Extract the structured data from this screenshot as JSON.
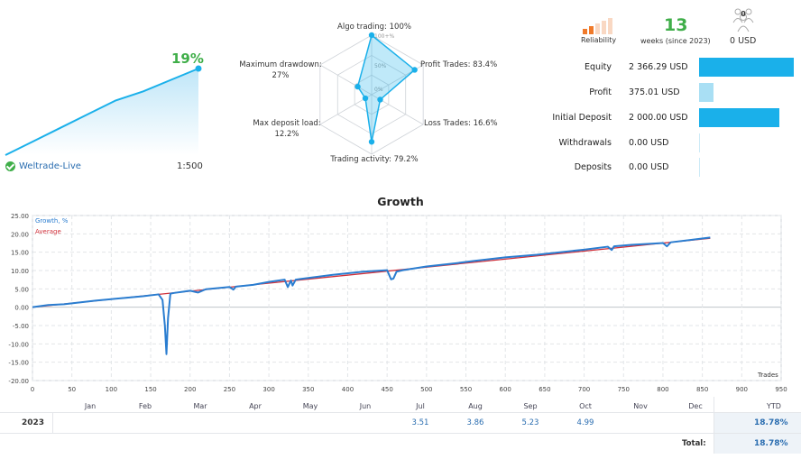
{
  "summary": {
    "growth_pct": "19%",
    "account_name": "Weltrade-Live",
    "leverage": "1:500",
    "mini_curve": [
      0,
      3,
      6,
      9,
      12,
      14,
      16.5,
      19
    ]
  },
  "radar": {
    "axes": [
      {
        "label": "Algo trading: 100%",
        "value": 100
      },
      {
        "label": "Profit Trades: 83.4%",
        "value": 83.4
      },
      {
        "label": "Loss Trades: 16.6%",
        "value": 16.6
      },
      {
        "label": "Trading activity: 79.2%",
        "value": 79.2
      },
      {
        "label": "Max deposit load:",
        "label2": "12.2%",
        "value": 12.2
      },
      {
        "label": "Maximum drawdown:",
        "label2": "27%",
        "value": 27
      }
    ],
    "rings": [
      "100+%",
      "50%",
      "0%"
    ]
  },
  "header": {
    "reliability_label": "Reliability",
    "weeks_number": "13",
    "weeks_label": "weeks (since 2023)",
    "subscribers_count": "0",
    "subscribers_value": "0 USD",
    "reliability_level": 2,
    "reliability_max": 5
  },
  "stats": [
    {
      "name": "Equity",
      "value": "2 366.29 USD",
      "fraction": 1.0
    },
    {
      "name": "Profit",
      "value": "375.01 USD",
      "fraction": 0.15
    },
    {
      "name": "Initial Deposit",
      "value": "2 000.00 USD",
      "fraction": 0.85
    },
    {
      "name": "Withdrawals",
      "value": "0.00 USD",
      "fraction": 0.0
    },
    {
      "name": "Deposits",
      "value": "0.00 USD",
      "fraction": 0.0
    }
  ],
  "chart_data": {
    "type": "line",
    "title": "Growth",
    "xlabel": "Trades",
    "xlim": [
      0,
      950
    ],
    "ylim": [
      -20,
      25
    ],
    "x_ticks": [
      0,
      50,
      100,
      150,
      200,
      250,
      300,
      350,
      400,
      450,
      500,
      550,
      600,
      650,
      700,
      750,
      800,
      850,
      900,
      950
    ],
    "y_ticks": [
      "25.00",
      "20.00",
      "15.00",
      "10.00",
      "5.00",
      "0.00",
      "-5.00",
      "-10.00",
      "-15.00",
      "-20.00"
    ],
    "y_tick_values": [
      25,
      20,
      15,
      10,
      5,
      0,
      -5,
      -10,
      -15,
      -20
    ],
    "grid": true,
    "legend_position": "top-left",
    "series": [
      {
        "name": "Growth, %",
        "color": "#2a7dd0",
        "x": [
          0,
          20,
          40,
          60,
          80,
          100,
          120,
          140,
          160,
          165,
          168,
          170,
          172,
          175,
          180,
          190,
          200,
          210,
          220,
          250,
          255,
          258,
          262,
          280,
          300,
          320,
          324,
          328,
          330,
          334,
          340,
          380,
          420,
          450,
          455,
          458,
          462,
          470,
          500,
          530,
          560,
          600,
          640,
          700,
          730,
          735,
          738,
          760,
          800,
          805,
          810,
          860
        ],
        "y": [
          0,
          0.6,
          0.8,
          1.3,
          1.8,
          2.2,
          2.6,
          3.0,
          3.5,
          2.0,
          -5.0,
          -12.8,
          -3.0,
          3.7,
          3.9,
          4.2,
          4.5,
          4.0,
          4.9,
          5.5,
          4.8,
          5.6,
          5.7,
          6.1,
          6.9,
          7.5,
          5.5,
          7.3,
          5.9,
          7.5,
          7.7,
          8.8,
          9.7,
          10.1,
          7.6,
          7.8,
          9.7,
          10.1,
          11.1,
          11.8,
          12.6,
          13.6,
          14.3,
          15.7,
          16.5,
          15.6,
          16.6,
          17.0,
          17.5,
          16.6,
          17.7,
          19.0
        ]
      },
      {
        "name": "Average",
        "color": "#d0303a",
        "x": [
          0,
          860
        ],
        "y": [
          0,
          18.8
        ]
      }
    ]
  },
  "monthly": {
    "months": [
      "Jan",
      "Feb",
      "Mar",
      "Apr",
      "May",
      "Jun",
      "Jul",
      "Aug",
      "Sep",
      "Oct",
      "Nov",
      "Dec"
    ],
    "ytd_header": "YTD",
    "year": "2023",
    "values": [
      "",
      "",
      "",
      "",
      "",
      "",
      "3.51",
      "3.86",
      "5.23",
      "4.99",
      "",
      ""
    ],
    "ytd_value": "18.78%",
    "total_label": "Total:",
    "total_value": "18.78%"
  }
}
